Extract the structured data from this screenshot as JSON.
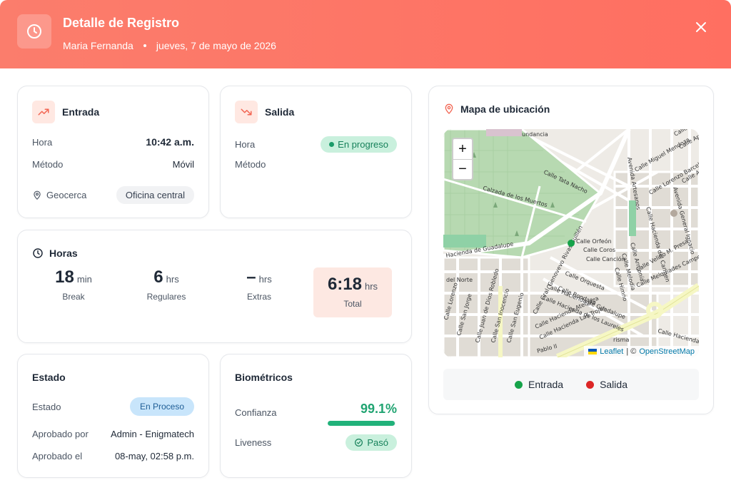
{
  "header": {
    "title": "Detalle de Registro",
    "name": "Maria Fernanda",
    "date": "jueves, 7 de mayo de 2026"
  },
  "entrada": {
    "title": "Entrada",
    "hora_label": "Hora",
    "hora_value": "10:42 a.m.",
    "metodo_label": "Método",
    "metodo_value": "Móvil",
    "geocerca_label": "Geocerca",
    "geocerca_value": "Oficina central"
  },
  "salida": {
    "title": "Salida",
    "hora_label": "Hora",
    "status": "En progreso",
    "metodo_label": "Método"
  },
  "horas": {
    "title": "Horas",
    "break": {
      "value": "18",
      "unit": "min",
      "label": "Break"
    },
    "regulares": {
      "value": "6",
      "unit": "hrs",
      "label": "Regulares"
    },
    "extras": {
      "value": "–",
      "unit": "hrs",
      "label": "Extras"
    },
    "total": {
      "value": "6:18",
      "unit": "hrs",
      "label": "Total"
    }
  },
  "estado": {
    "title": "Estado",
    "estado_label": "Estado",
    "estado_value": "En Proceso",
    "aprobado_por_label": "Aprobado por",
    "aprobado_por_value": "Admin - Enigmatech",
    "aprobado_el_label": "Aprobado el",
    "aprobado_el_value": "08-may, 02:58 p.m."
  },
  "biometricos": {
    "title": "Biométricos",
    "confianza_label": "Confianza",
    "confianza_value": "99.1%",
    "confianza_fraction": 0.991,
    "liveness_label": "Liveness",
    "liveness_value": "Pasó"
  },
  "map": {
    "title": "Mapa de ubicación",
    "zoom_in": "+",
    "zoom_out": "−",
    "attribution_leaflet": "Leaflet",
    "attribution_sep": "| ©",
    "attribution_osm": "OpenStreetMap",
    "streets": {
      "s1": "Calle Tata Nacho",
      "s2": "Calzada de los Muertos",
      "s3": "Avenida Artesanos",
      "s4": "Calle Miguel Mendoza",
      "s5": "Calle Lorenzo Barcelata",
      "s6": "Calle Hacienda del Carmen",
      "s7": "Avenida General Ignacio",
      "s8": "Calle Orfeón",
      "s9": "Calle Coros",
      "s10": "Calle Canción",
      "s11": "Calle Armonía",
      "s12": "Calle Melodía",
      "s13": "Calle Himno",
      "s14": "Calle Velino M. Presa",
      "s15": "Calle Melquiades Campos",
      "s16": "Calle Gral. Genovevo Rivas Guillén",
      "s17": "Hacienda de Guadalupe",
      "s18": "Calle Orquesta",
      "s19": "Calle Rondalla",
      "s20": "Calle Hacienda de Guadalupe",
      "s21": "Calle Hacienda de los Laureles",
      "s22": "Calle Hacienda Atequiza",
      "s23": "Calle Hacienda Las Trojes",
      "s24": "Calle Juan de Dios Robledo",
      "s25": "Calle San Inocencio",
      "s26": "Calle San Eugenio",
      "s27": "Calle San Jorge",
      "s28": "Calle Lorenzo",
      "s29": "del Norte",
      "s30": "Pablo II",
      "s31": "undancia",
      "s32": "Calle Hacienda",
      "s33": "Calle Luis",
      "s34": "Calle Apo",
      "s35": "Calle Alv",
      "s36": "risma"
    }
  },
  "legend": {
    "entrada": "Entrada",
    "salida": "Salida",
    "entrada_color": "#16a34a",
    "salida_color": "#dc2626"
  },
  "colors": {
    "accent": "#ff6f61",
    "success": "#21b27a",
    "info": "#c8e5fb"
  }
}
